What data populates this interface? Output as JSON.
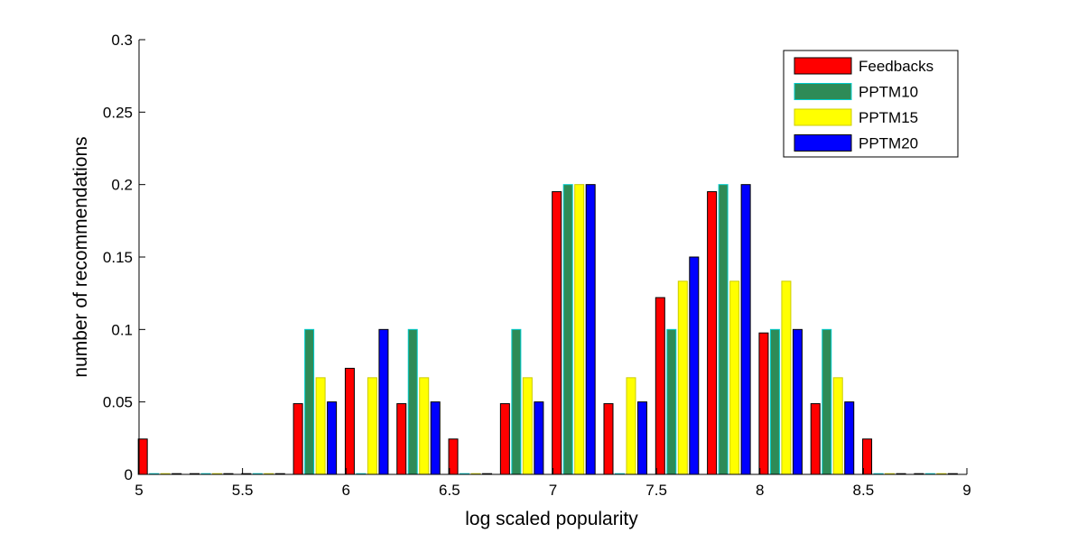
{
  "chart_data": {
    "type": "bar",
    "xlabel": "log scaled popularity",
    "ylabel": "number of recommendations",
    "xlim": [
      5,
      9
    ],
    "ylim": [
      0,
      0.3
    ],
    "xticks": [
      "5",
      "5.5",
      "6",
      "6.5",
      "7",
      "7.5",
      "8",
      "8.5",
      "9"
    ],
    "yticks": [
      "0",
      "0.05",
      "0.1",
      "0.15",
      "0.2",
      "0.25",
      "0.3"
    ],
    "grid": false,
    "legend_position": "top-right",
    "bins": [
      5.1,
      5.35,
      5.6,
      5.85,
      6.1,
      6.35,
      6.6,
      6.85,
      7.1,
      7.35,
      7.6,
      7.85,
      8.1,
      8.35,
      8.6,
      8.85
    ],
    "series": [
      {
        "name": "Feedbacks",
        "color": "#ff0000",
        "edge": "#000000",
        "values": [
          0.0244,
          0,
          0,
          0.0488,
          0.0732,
          0.0488,
          0.0244,
          0.0488,
          0.1951,
          0.0488,
          0.122,
          0.1951,
          0.0976,
          0.0488,
          0.0244,
          0
        ]
      },
      {
        "name": "PPTM10",
        "color": "#2e8b57",
        "edge": "#00cccc",
        "values": [
          0,
          0,
          0,
          0.1,
          0,
          0.1,
          0,
          0.1,
          0.2,
          0,
          0.1,
          0.2,
          0.1,
          0.1,
          0,
          0
        ]
      },
      {
        "name": "PPTM15",
        "color": "#ffff00",
        "edge": "#cccc00",
        "values": [
          0,
          0,
          0,
          0.0667,
          0.0667,
          0.0667,
          0,
          0.0667,
          0.2,
          0.0667,
          0.1333,
          0.1333,
          0.1333,
          0.0667,
          0,
          0
        ]
      },
      {
        "name": "PPTM20",
        "color": "#0000ff",
        "edge": "#000000",
        "values": [
          0,
          0,
          0,
          0.05,
          0.1,
          0.05,
          0,
          0.05,
          0.2,
          0.05,
          0.15,
          0.2,
          0.1,
          0.05,
          0,
          0
        ]
      }
    ]
  }
}
